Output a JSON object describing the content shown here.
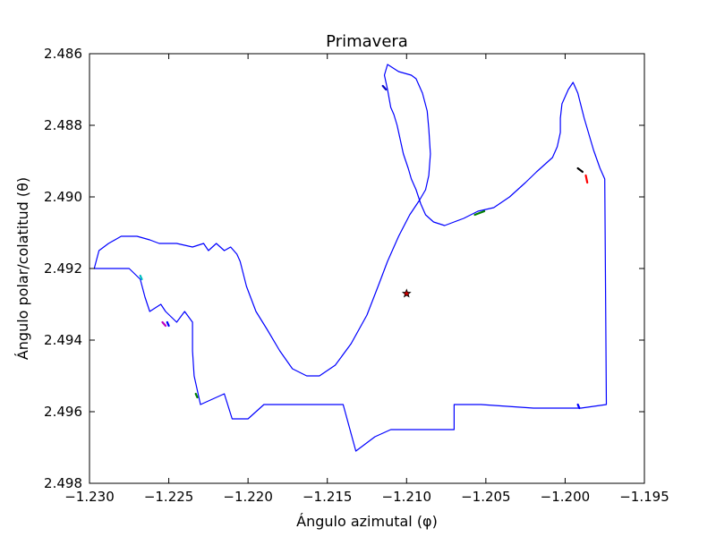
{
  "chart_data": {
    "type": "line",
    "title": "Primavera",
    "xlabel": "Ángulo azimutal (φ)",
    "ylabel": "Ángulo polar/colatitud (θ)",
    "xlim": [
      -1.23,
      -1.195
    ],
    "ylim": [
      2.498,
      2.486
    ],
    "y_inverted": true,
    "grid": false,
    "x_ticks": [
      "−1.230",
      "−1.225",
      "−1.220",
      "−1.215",
      "−1.210",
      "−1.205",
      "−1.200",
      "−1.195"
    ],
    "x_tick_values": [
      -1.23,
      -1.225,
      -1.22,
      -1.215,
      -1.21,
      -1.205,
      -1.2,
      -1.195
    ],
    "y_ticks": [
      "2.486",
      "2.488",
      "2.490",
      "2.492",
      "2.494",
      "2.496",
      "2.498"
    ],
    "y_tick_values": [
      2.486,
      2.488,
      2.49,
      2.492,
      2.494,
      2.496,
      2.498
    ],
    "colors": {
      "boundary": "#0000ff",
      "center": "#cc0000"
    },
    "boundary": [
      [
        -1.2297,
        2.492
      ],
      [
        -1.2294,
        2.4915
      ],
      [
        -1.2288,
        2.4913
      ],
      [
        -1.228,
        2.4911
      ],
      [
        -1.227,
        2.4911
      ],
      [
        -1.2262,
        2.4912
      ],
      [
        -1.2256,
        2.4913
      ],
      [
        -1.2245,
        2.4913
      ],
      [
        -1.2235,
        2.4914
      ],
      [
        -1.2228,
        2.4913
      ],
      [
        -1.2225,
        2.4915
      ],
      [
        -1.222,
        2.4913
      ],
      [
        -1.2215,
        2.4915
      ],
      [
        -1.2211,
        2.4914
      ],
      [
        -1.2209,
        2.4915
      ],
      [
        -1.2207,
        2.4916
      ],
      [
        -1.2205,
        2.4918
      ],
      [
        -1.2201,
        2.4925
      ],
      [
        -1.2195,
        2.4932
      ],
      [
        -1.2188,
        2.4937
      ],
      [
        -1.218,
        2.4943
      ],
      [
        -1.2172,
        2.4948
      ],
      [
        -1.2163,
        2.495
      ],
      [
        -1.2155,
        2.495
      ],
      [
        -1.2145,
        2.4947
      ],
      [
        -1.2135,
        2.4941
      ],
      [
        -1.2125,
        2.4933
      ],
      [
        -1.2118,
        2.4925
      ],
      [
        -1.2112,
        2.4918
      ],
      [
        -1.2105,
        2.4911
      ],
      [
        -1.2098,
        2.4905
      ],
      [
        -1.2092,
        2.4901
      ],
      [
        -1.2088,
        2.4898
      ],
      [
        -1.2086,
        2.4894
      ],
      [
        -1.2085,
        2.4888
      ],
      [
        -1.2086,
        2.4881
      ],
      [
        -1.2087,
        2.4876
      ],
      [
        -1.209,
        2.4871
      ],
      [
        -1.2094,
        2.4867
      ],
      [
        -1.2097,
        2.4866
      ],
      [
        -1.2105,
        2.4865
      ],
      [
        -1.2112,
        2.4863
      ],
      [
        -1.2114,
        2.4866
      ],
      [
        -1.2112,
        2.487
      ],
      [
        -1.211,
        2.4875
      ],
      [
        -1.2108,
        2.4877
      ],
      [
        -1.2106,
        2.488
      ],
      [
        -1.2104,
        2.4884
      ],
      [
        -1.2102,
        2.4888
      ],
      [
        -1.2099,
        2.4892
      ],
      [
        -1.2097,
        2.4895
      ],
      [
        -1.2094,
        2.4898
      ],
      [
        -1.2091,
        2.4902
      ],
      [
        -1.2088,
        2.4905
      ],
      [
        -1.2083,
        2.4907
      ],
      [
        -1.2076,
        2.4908
      ],
      [
        -1.207,
        2.4907
      ],
      [
        -1.2064,
        2.4906
      ],
      [
        -1.2055,
        2.4904
      ],
      [
        -1.2045,
        2.4903
      ],
      [
        -1.2035,
        2.49
      ],
      [
        -1.2025,
        2.4896
      ],
      [
        -1.2018,
        2.4893
      ],
      [
        -1.2013,
        2.4891
      ],
      [
        -1.2008,
        2.4889
      ],
      [
        -1.2005,
        2.4886
      ],
      [
        -1.2003,
        2.4882
      ],
      [
        -1.2003,
        2.4878
      ],
      [
        -1.2002,
        2.4874
      ],
      [
        -1.1998,
        2.487
      ],
      [
        -1.1995,
        2.4868
      ],
      [
        -1.1992,
        2.4871
      ],
      [
        -1.1988,
        2.4878
      ],
      [
        -1.1982,
        2.4887
      ],
      [
        -1.1978,
        2.4892
      ],
      [
        -1.1975,
        2.4895
      ],
      [
        -1.1974,
        2.4958
      ],
      [
        -1.199,
        2.4959
      ],
      [
        -1.202,
        2.4959
      ],
      [
        -1.2053,
        2.4958
      ],
      [
        -1.207,
        2.4958
      ],
      [
        -1.207,
        2.4965
      ],
      [
        -1.209,
        2.4965
      ],
      [
        -1.211,
        2.4965
      ],
      [
        -1.212,
        2.4967
      ],
      [
        -1.2132,
        2.4971
      ],
      [
        -1.214,
        2.4958
      ],
      [
        -1.2163,
        2.4958
      ],
      [
        -1.219,
        2.4958
      ],
      [
        -1.22,
        2.4962
      ],
      [
        -1.221,
        2.4962
      ],
      [
        -1.2215,
        2.4955
      ],
      [
        -1.223,
        2.4958
      ],
      [
        -1.2234,
        2.495
      ],
      [
        -1.2235,
        2.4943
      ],
      [
        -1.2235,
        2.4935
      ],
      [
        -1.224,
        2.4932
      ],
      [
        -1.2245,
        2.4935
      ],
      [
        -1.2252,
        2.4932
      ],
      [
        -1.2255,
        2.493
      ],
      [
        -1.2262,
        2.4932
      ],
      [
        -1.2265,
        2.4928
      ],
      [
        -1.2268,
        2.4923
      ],
      [
        -1.2275,
        2.492
      ],
      [
        -1.229,
        2.492
      ],
      [
        -1.2297,
        2.492
      ]
    ],
    "series": [
      {
        "color": "#00bfbf",
        "points": [
          [
            -1.2268,
            2.4922
          ],
          [
            -1.2267,
            2.4923
          ]
        ]
      },
      {
        "color": "#bf00bf",
        "points": [
          [
            -1.2254,
            2.4935
          ],
          [
            -1.2252,
            2.4936
          ]
        ]
      },
      {
        "color": "#0000ff",
        "points": [
          [
            -1.2251,
            2.4935
          ],
          [
            -1.225,
            2.4936
          ]
        ]
      },
      {
        "color": "#008000",
        "points": [
          [
            -1.2233,
            2.4955
          ],
          [
            -1.2232,
            2.4956
          ]
        ]
      },
      {
        "color": "#008000",
        "points": [
          [
            -1.2057,
            2.4905
          ],
          [
            -1.2051,
            2.4904
          ]
        ]
      },
      {
        "color": "#000000",
        "points": [
          [
            -1.1992,
            2.4892
          ],
          [
            -1.1989,
            2.4893
          ]
        ]
      },
      {
        "color": "#ff0000",
        "points": [
          [
            -1.1987,
            2.4894
          ],
          [
            -1.1986,
            2.4896
          ]
        ]
      },
      {
        "color": "#0000ff",
        "points": [
          [
            -1.1992,
            2.4958
          ],
          [
            -1.1991,
            2.4959
          ]
        ]
      },
      {
        "color": "#0000bf",
        "points": [
          [
            -1.2115,
            2.4869
          ],
          [
            -1.2113,
            2.487
          ]
        ]
      }
    ],
    "center": {
      "x": -1.21,
      "y": 2.4927,
      "marker": "star"
    }
  }
}
